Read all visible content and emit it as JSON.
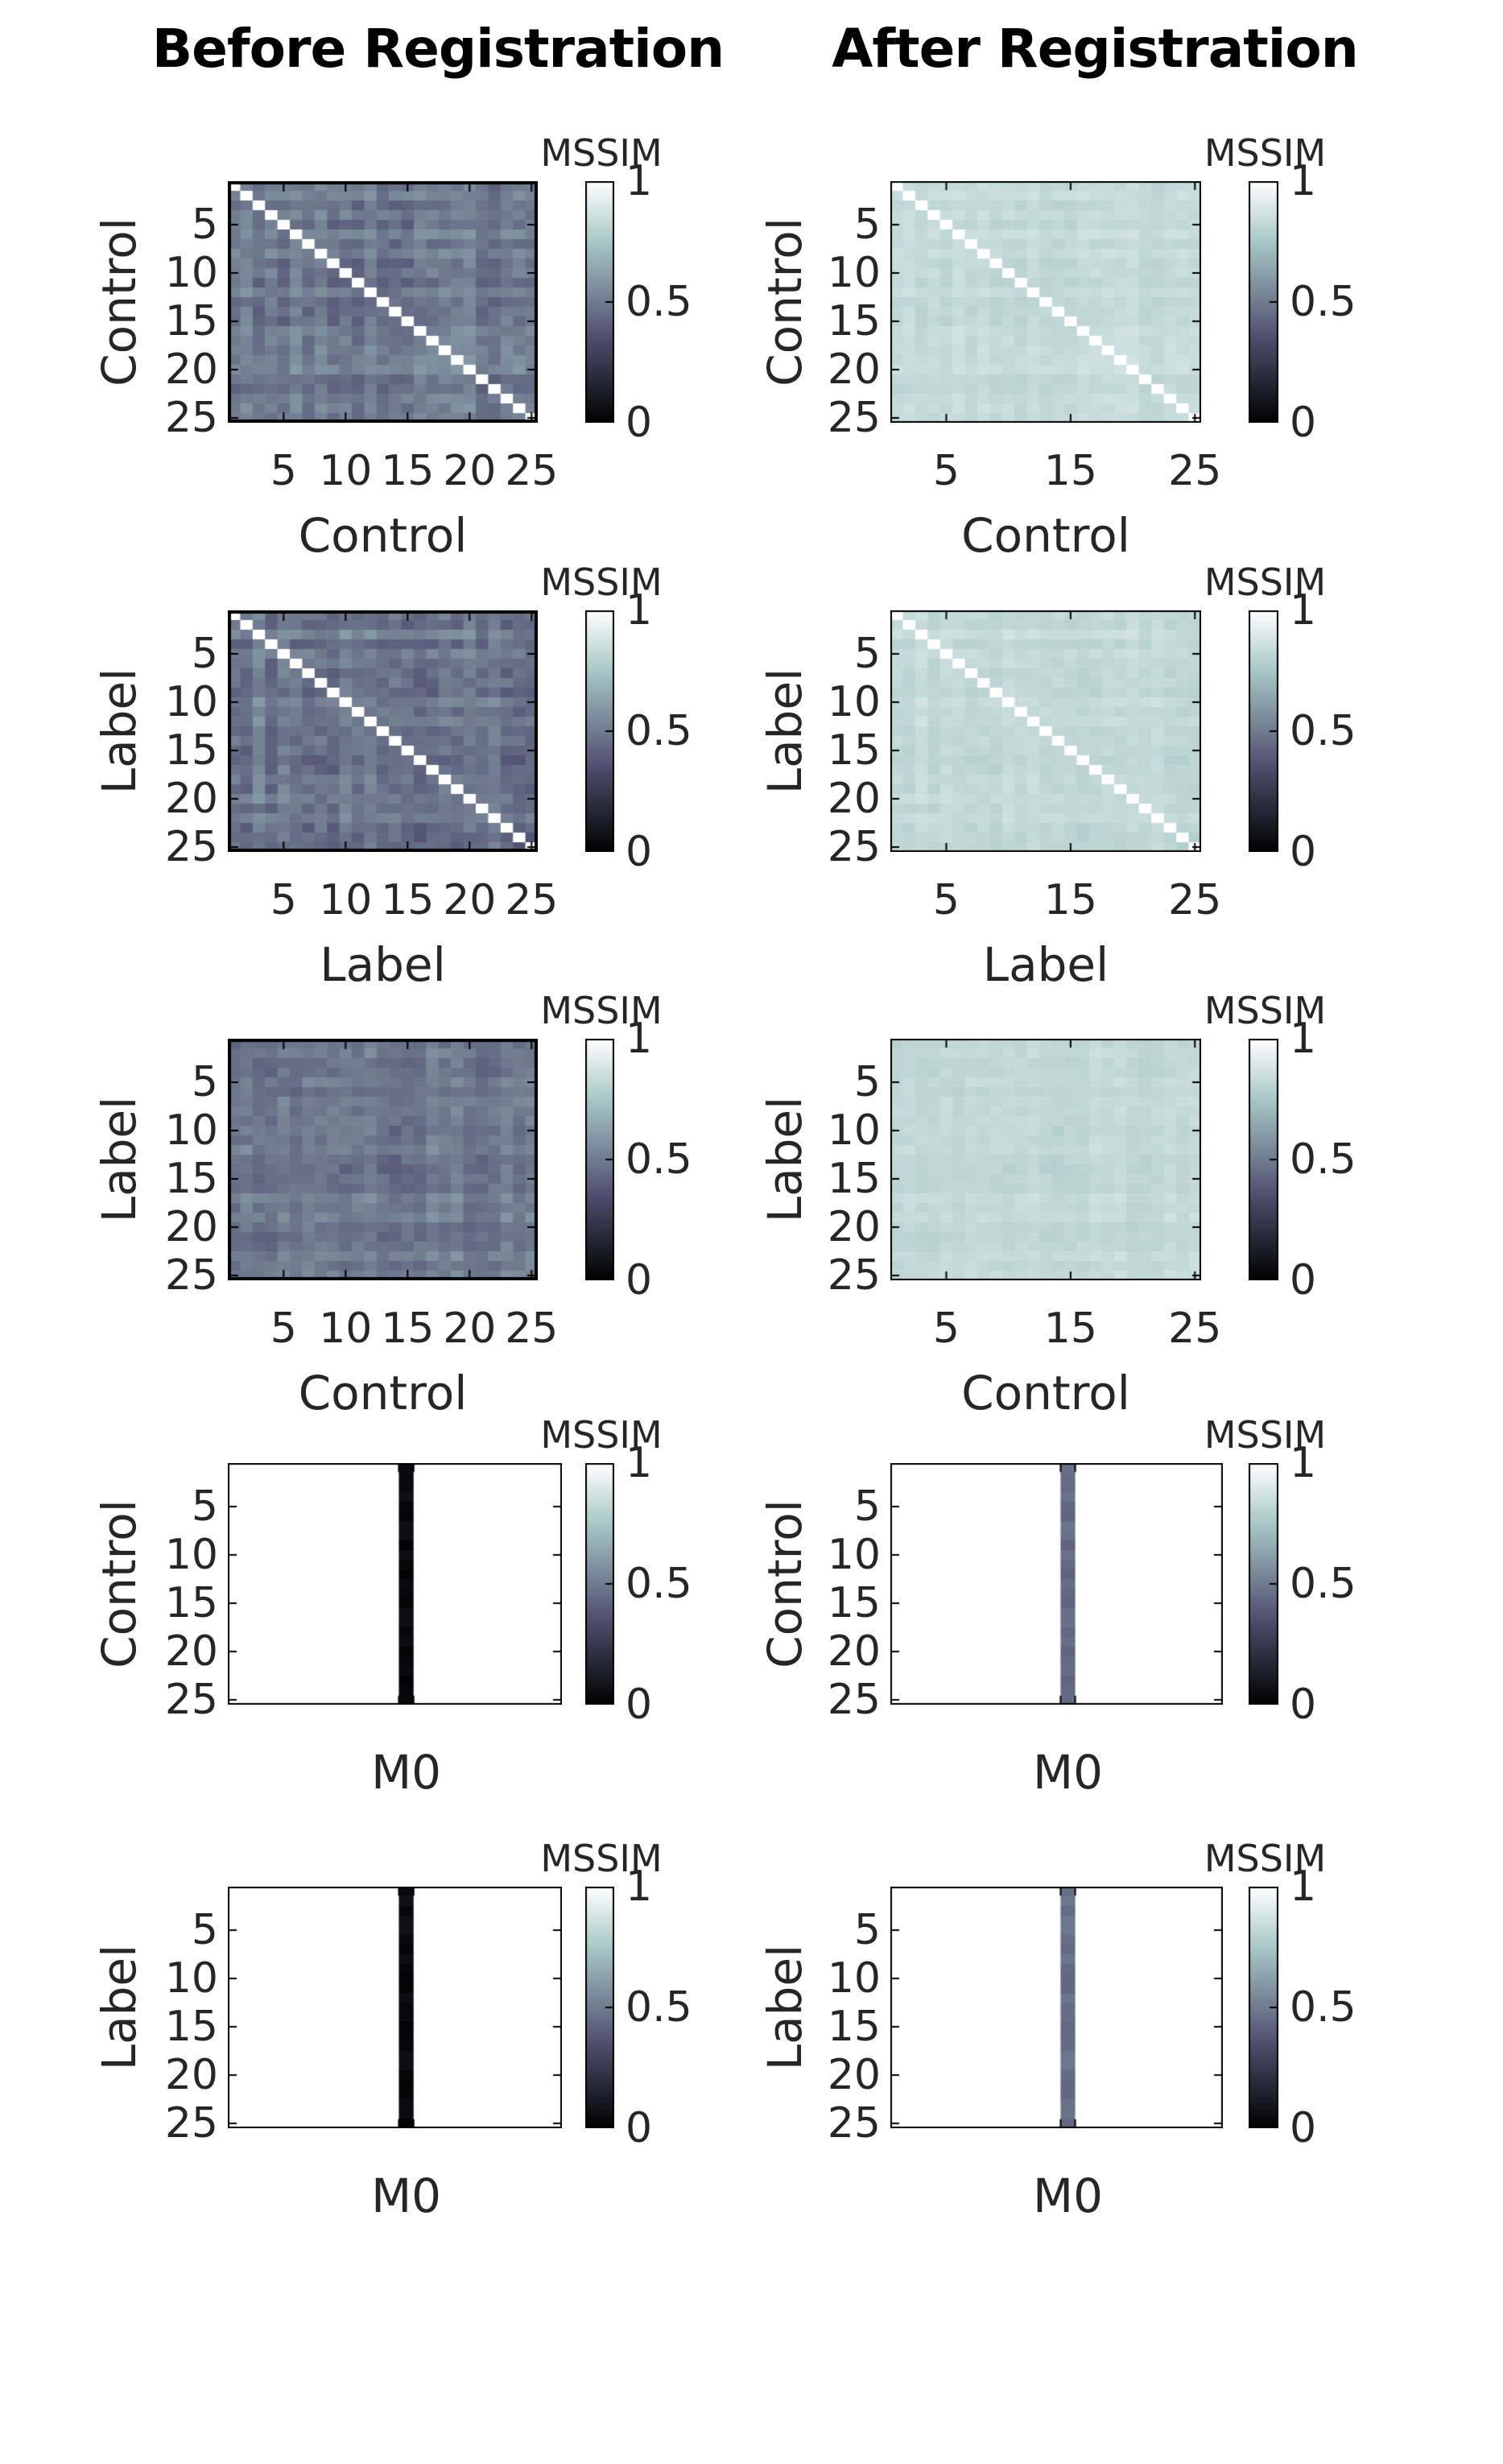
{
  "figure": {
    "column_titles": [
      {
        "text": "Before Registration"
      },
      {
        "text": "After Registration"
      }
    ],
    "colorbar": {
      "title": "MSSIM",
      "tick_labels": [
        "1",
        "0.5",
        "0"
      ],
      "tick_values": [
        1,
        0.5,
        0
      ],
      "range": [
        0,
        1
      ],
      "colormap": "bone"
    },
    "colors": {
      "background": "#ffffff",
      "axis_text": "#262626",
      "axis_border": "#000000",
      "before_cell_dark": "#646b84",
      "after_cell_light": "#c0d6d7",
      "m0_bar_before": "#101018",
      "m0_bar_after": "#6b7394"
    }
  },
  "chart_data": [
    {
      "panel": "row1-before",
      "type": "heatmap",
      "column_group": "before",
      "row": 1,
      "n_rows": 25,
      "n_cols": 25,
      "ylabel": "Control",
      "xlabel": "Control",
      "y_ticks": [
        "5",
        "10",
        "15",
        "20",
        "25"
      ],
      "x_ticks": [
        "5",
        "10",
        "15",
        "20",
        "25"
      ],
      "diagonal_value": 1,
      "offdiagonal_range": [
        0.36,
        0.62
      ],
      "colorbar_title": "MSSIM",
      "colorbar_ticks": [
        "1",
        "0.5",
        "0"
      ],
      "seed": 11
    },
    {
      "panel": "row1-after",
      "type": "heatmap",
      "column_group": "after",
      "row": 1,
      "n_rows": 25,
      "n_cols": 25,
      "ylabel": "Control",
      "xlabel": "Control",
      "y_ticks": [
        "5",
        "10",
        "15",
        "20",
        "25"
      ],
      "x_ticks": [
        "5",
        "15",
        "25"
      ],
      "diagonal_value": 1,
      "offdiagonal_range": [
        0.78,
        0.88
      ],
      "colorbar_title": "MSSIM",
      "colorbar_ticks": [
        "1",
        "0.5",
        "0"
      ],
      "seed": 11
    },
    {
      "panel": "row2-before",
      "type": "heatmap",
      "column_group": "before",
      "row": 2,
      "n_rows": 25,
      "n_cols": 25,
      "ylabel": "Label",
      "xlabel": "Label",
      "y_ticks": [
        "5",
        "10",
        "15",
        "20",
        "25"
      ],
      "x_ticks": [
        "5",
        "10",
        "15",
        "20",
        "25"
      ],
      "diagonal_value": 1,
      "offdiagonal_range": [
        0.36,
        0.62
      ],
      "colorbar_title": "MSSIM",
      "colorbar_ticks": [
        "1",
        "0.5",
        "0"
      ],
      "seed": 23
    },
    {
      "panel": "row2-after",
      "type": "heatmap",
      "column_group": "after",
      "row": 2,
      "n_rows": 25,
      "n_cols": 25,
      "ylabel": "Label",
      "xlabel": "Label",
      "y_ticks": [
        "5",
        "10",
        "15",
        "20",
        "25"
      ],
      "x_ticks": [
        "5",
        "15",
        "25"
      ],
      "diagonal_value": 1,
      "offdiagonal_range": [
        0.78,
        0.88
      ],
      "colorbar_title": "MSSIM",
      "colorbar_ticks": [
        "1",
        "0.5",
        "0"
      ],
      "seed": 23
    },
    {
      "panel": "row3-before",
      "type": "heatmap",
      "column_group": "before",
      "row": 3,
      "n_rows": 25,
      "n_cols": 25,
      "ylabel": "Label",
      "xlabel": "Control",
      "y_ticks": [
        "5",
        "10",
        "15",
        "20",
        "25"
      ],
      "x_ticks": [
        "5",
        "10",
        "15",
        "20",
        "25"
      ],
      "diagonal_value": null,
      "offdiagonal_range": [
        0.38,
        0.6
      ],
      "colorbar_title": "MSSIM",
      "colorbar_ticks": [
        "1",
        "0.5",
        "0"
      ],
      "seed": 37
    },
    {
      "panel": "row3-after",
      "type": "heatmap",
      "column_group": "after",
      "row": 3,
      "n_rows": 25,
      "n_cols": 25,
      "ylabel": "Label",
      "xlabel": "Control",
      "y_ticks": [
        "5",
        "10",
        "15",
        "20",
        "25"
      ],
      "x_ticks": [
        "5",
        "15",
        "25"
      ],
      "diagonal_value": null,
      "offdiagonal_range": [
        0.78,
        0.87
      ],
      "colorbar_title": "MSSIM",
      "colorbar_ticks": [
        "1",
        "0.5",
        "0"
      ],
      "seed": 37
    },
    {
      "panel": "row4-before",
      "type": "heatmap-column",
      "column_group": "before",
      "row": 4,
      "n_rows": 25,
      "n_cols": 1,
      "ylabel": "Control",
      "xlabel": "M0",
      "y_ticks": [
        "5",
        "10",
        "15",
        "20",
        "25"
      ],
      "x_ticks": [],
      "diagonal_value": null,
      "column_value": 0.04,
      "colorbar_title": "MSSIM",
      "colorbar_ticks": [
        "1",
        "0.5",
        "0"
      ],
      "seed": 51
    },
    {
      "panel": "row4-after",
      "type": "heatmap-column",
      "column_group": "after",
      "row": 4,
      "n_rows": 25,
      "n_cols": 1,
      "ylabel": "Control",
      "xlabel": "M0",
      "y_ticks": [
        "5",
        "10",
        "15",
        "20",
        "25"
      ],
      "x_ticks": [],
      "diagonal_value": null,
      "column_value": 0.45,
      "colorbar_title": "MSSIM",
      "colorbar_ticks": [
        "1",
        "0.5",
        "0"
      ],
      "seed": 51
    },
    {
      "panel": "row5-before",
      "type": "heatmap-column",
      "column_group": "before",
      "row": 5,
      "n_rows": 25,
      "n_cols": 1,
      "ylabel": "Label",
      "xlabel": "M0",
      "y_ticks": [
        "5",
        "10",
        "15",
        "20",
        "25"
      ],
      "x_ticks": [],
      "diagonal_value": null,
      "column_value": 0.04,
      "colorbar_title": "MSSIM",
      "colorbar_ticks": [
        "1",
        "0.5",
        "0"
      ],
      "seed": 63
    },
    {
      "panel": "row5-after",
      "type": "heatmap-column",
      "column_group": "after",
      "row": 5,
      "n_rows": 25,
      "n_cols": 1,
      "ylabel": "Label",
      "xlabel": "M0",
      "y_ticks": [
        "5",
        "10",
        "15",
        "20",
        "25"
      ],
      "x_ticks": [],
      "diagonal_value": null,
      "column_value": 0.46,
      "colorbar_title": "MSSIM",
      "colorbar_ticks": [
        "1",
        "0.5",
        "0"
      ],
      "seed": 63
    }
  ]
}
